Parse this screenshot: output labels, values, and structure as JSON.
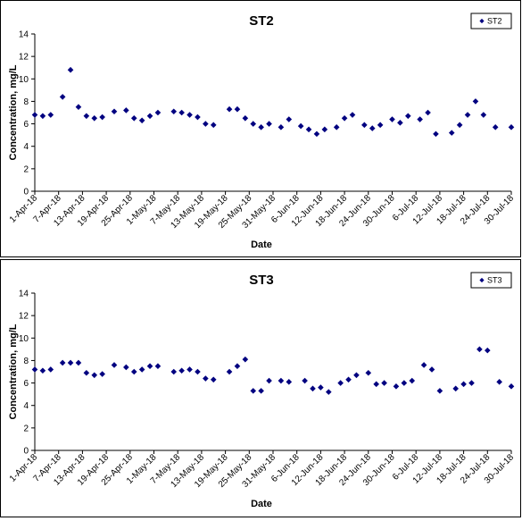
{
  "chart_data": [
    {
      "type": "scatter",
      "title": "ST2",
      "xlabel": "Date",
      "ylabel": "Concentration, mg/L",
      "ylim": [
        0,
        14
      ],
      "yticks": [
        "0",
        "2",
        "4",
        "6",
        "8",
        "10",
        "12",
        "14"
      ],
      "xlim": [
        "2018-04-01",
        "2018-07-30"
      ],
      "xtick_labels": [
        "1-Apr-18",
        "7-Apr-18",
        "13-Apr-18",
        "19-Apr-18",
        "25-Apr-18",
        "1-May-18",
        "7-May-18",
        "13-May-18",
        "19-May-18",
        "25-May-18",
        "31-May-18",
        "6-Jun-18",
        "12-Jun-18",
        "18-Jun-18",
        "24-Jun-18",
        "30-Jun-18",
        "6-Jul-18",
        "12-Jul-18",
        "18-Jul-18",
        "24-Jul-18",
        "30-Jul-18"
      ],
      "grid": false,
      "legend_position": "top-right",
      "marker_color": "#000080",
      "series": [
        {
          "name": "ST2",
          "x": [
            "2018-04-01",
            "2018-04-03",
            "2018-04-05",
            "2018-04-08",
            "2018-04-10",
            "2018-04-12",
            "2018-04-14",
            "2018-04-16",
            "2018-04-18",
            "2018-04-21",
            "2018-04-24",
            "2018-04-26",
            "2018-04-28",
            "2018-04-30",
            "2018-05-02",
            "2018-05-06",
            "2018-05-08",
            "2018-05-10",
            "2018-05-12",
            "2018-05-14",
            "2018-05-16",
            "2018-05-20",
            "2018-05-22",
            "2018-05-24",
            "2018-05-26",
            "2018-05-28",
            "2018-05-30",
            "2018-06-02",
            "2018-06-04",
            "2018-06-07",
            "2018-06-09",
            "2018-06-11",
            "2018-06-13",
            "2018-06-16",
            "2018-06-18",
            "2018-06-20",
            "2018-06-23",
            "2018-06-25",
            "2018-06-27",
            "2018-06-30",
            "2018-07-02",
            "2018-07-04",
            "2018-07-07",
            "2018-07-09",
            "2018-07-11",
            "2018-07-15",
            "2018-07-17",
            "2018-07-19",
            "2018-07-21",
            "2018-07-23",
            "2018-07-26",
            "2018-07-30"
          ],
          "y": [
            6.8,
            6.7,
            6.8,
            8.4,
            10.8,
            7.5,
            6.7,
            6.5,
            6.6,
            7.1,
            7.2,
            6.5,
            6.3,
            6.7,
            7.0,
            7.1,
            7.0,
            6.8,
            6.6,
            6.0,
            5.9,
            7.3,
            7.3,
            6.5,
            6.0,
            5.7,
            6.0,
            5.7,
            6.4,
            5.8,
            5.5,
            5.1,
            5.5,
            5.7,
            6.5,
            6.8,
            5.9,
            5.6,
            5.9,
            6.4,
            6.1,
            6.7,
            6.4,
            7.0,
            5.1,
            5.2,
            5.9,
            6.8,
            8.0,
            6.8,
            5.7,
            5.7
          ]
        }
      ]
    },
    {
      "type": "scatter",
      "title": "ST3",
      "xlabel": "Date",
      "ylabel": "Concentration, mg/L",
      "ylim": [
        0,
        14
      ],
      "yticks": [
        "0",
        "2",
        "4",
        "6",
        "8",
        "10",
        "12",
        "14"
      ],
      "xlim": [
        "2018-04-01",
        "2018-07-30"
      ],
      "xtick_labels": [
        "1-Apr-18",
        "7-Apr-18",
        "13-Apr-18",
        "19-Apr-18",
        "25-Apr-18",
        "1-May-18",
        "7-May-18",
        "13-May-18",
        "19-May-18",
        "25-May-18",
        "31-May-18",
        "6-Jun-18",
        "12-Jun-18",
        "18-Jun-18",
        "24-Jun-18",
        "30-Jun-18",
        "6-Jul-18",
        "12-Jul-18",
        "18-Jul-18",
        "24-Jul-18",
        "30-Jul-18"
      ],
      "grid": false,
      "legend_position": "top-right",
      "marker_color": "#000080",
      "series": [
        {
          "name": "ST3",
          "x": [
            "2018-04-01",
            "2018-04-03",
            "2018-04-05",
            "2018-04-08",
            "2018-04-10",
            "2018-04-12",
            "2018-04-14",
            "2018-04-16",
            "2018-04-18",
            "2018-04-21",
            "2018-04-24",
            "2018-04-26",
            "2018-04-28",
            "2018-04-30",
            "2018-05-02",
            "2018-05-06",
            "2018-05-08",
            "2018-05-10",
            "2018-05-12",
            "2018-05-14",
            "2018-05-16",
            "2018-05-20",
            "2018-05-22",
            "2018-05-24",
            "2018-05-26",
            "2018-05-28",
            "2018-05-30",
            "2018-06-02",
            "2018-06-04",
            "2018-06-08",
            "2018-06-10",
            "2018-06-12",
            "2018-06-14",
            "2018-06-17",
            "2018-06-19",
            "2018-06-21",
            "2018-06-24",
            "2018-06-26",
            "2018-06-28",
            "2018-07-01",
            "2018-07-03",
            "2018-07-05",
            "2018-07-08",
            "2018-07-10",
            "2018-07-12",
            "2018-07-16",
            "2018-07-18",
            "2018-07-20",
            "2018-07-22",
            "2018-07-24",
            "2018-07-27",
            "2018-07-30"
          ],
          "y": [
            7.2,
            7.1,
            7.2,
            7.8,
            7.8,
            7.8,
            6.9,
            6.7,
            6.8,
            7.6,
            7.4,
            7.0,
            7.2,
            7.5,
            7.5,
            7.0,
            7.1,
            7.2,
            7.0,
            6.4,
            6.3,
            7.0,
            7.5,
            8.1,
            5.3,
            5.3,
            6.2,
            6.2,
            6.1,
            6.2,
            5.5,
            5.6,
            5.2,
            6.0,
            6.3,
            6.7,
            6.9,
            5.9,
            6.0,
            5.7,
            6.0,
            6.2,
            7.6,
            7.2,
            5.3,
            5.5,
            5.9,
            6.0,
            9.0,
            8.9,
            6.1,
            5.7
          ]
        }
      ]
    }
  ]
}
